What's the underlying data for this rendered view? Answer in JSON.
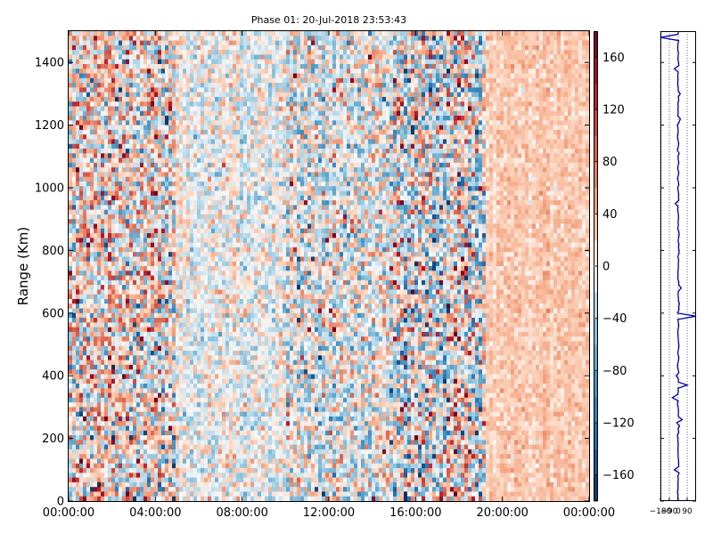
{
  "chart_data": [
    {
      "type": "heatmap",
      "title": "Phase 01: 20-Jul-2018 23:53:43",
      "xlabel": "",
      "ylabel": "Range (Km)",
      "x_tick_labels": [
        "00:00:00",
        "04:00:00",
        "08:00:00",
        "12:00:00",
        "16:00:00",
        "20:00:00",
        "00:00:00"
      ],
      "x_tick_hours": [
        0,
        4,
        8,
        12,
        16,
        20,
        24
      ],
      "xlim_hours": [
        0,
        24
      ],
      "y_ticks": [
        0,
        200,
        400,
        600,
        800,
        1000,
        1200,
        1400
      ],
      "ylim": [
        0,
        1500
      ],
      "grid": false,
      "colormap": "RdBu_r",
      "color_low": "#053061",
      "color_mid": "#f7f7f7",
      "color_high": "#67001f",
      "colorbar": {
        "range": [
          -180,
          180
        ],
        "ticks": [
          -160,
          -120,
          -80,
          -40,
          0,
          40,
          80,
          120,
          160
        ],
        "tick_labels": [
          "−160",
          "−120",
          "−80",
          "−40",
          "0",
          "40",
          "80",
          "120",
          "160"
        ],
        "levels": 18
      },
      "data_gap_hours": [
        19.2,
        24
      ],
      "regions": [
        {
          "hours": [
            0,
            5
          ],
          "mean": 10,
          "noise": 55
        },
        {
          "hours": [
            5,
            10
          ],
          "mean": -5,
          "noise": 25
        },
        {
          "hours": [
            10,
            15
          ],
          "mean": -8,
          "noise": 40
        },
        {
          "hours": [
            15,
            19.2
          ],
          "mean": -12,
          "noise": 60
        },
        {
          "hours": [
            19.2,
            24
          ],
          "mean": 25,
          "noise": 12
        }
      ]
    },
    {
      "type": "line",
      "title": "",
      "x_tick_labels": [
        "−180",
        "−90",
        "0",
        "90"
      ],
      "x_ticks": [
        -180,
        -90,
        0,
        90
      ],
      "xlim": [
        -180,
        180
      ],
      "ylim": [
        0,
        1500
      ],
      "grid": true,
      "line_color": "#0000aa",
      "baseline_phase": 0,
      "spikes": [
        {
          "range_km": 1480,
          "phase": -180
        },
        {
          "range_km": 1380,
          "phase": -40
        },
        {
          "range_km": 1300,
          "phase": 20
        },
        {
          "range_km": 950,
          "phase": -30
        },
        {
          "range_km": 680,
          "phase": 30
        },
        {
          "range_km": 585,
          "phase": 180
        },
        {
          "range_km": 400,
          "phase": -20
        },
        {
          "range_km": 372,
          "phase": 90
        },
        {
          "range_km": 330,
          "phase": -60
        },
        {
          "range_km": 260,
          "phase": 40
        },
        {
          "range_km": 100,
          "phase": -40
        }
      ]
    }
  ]
}
